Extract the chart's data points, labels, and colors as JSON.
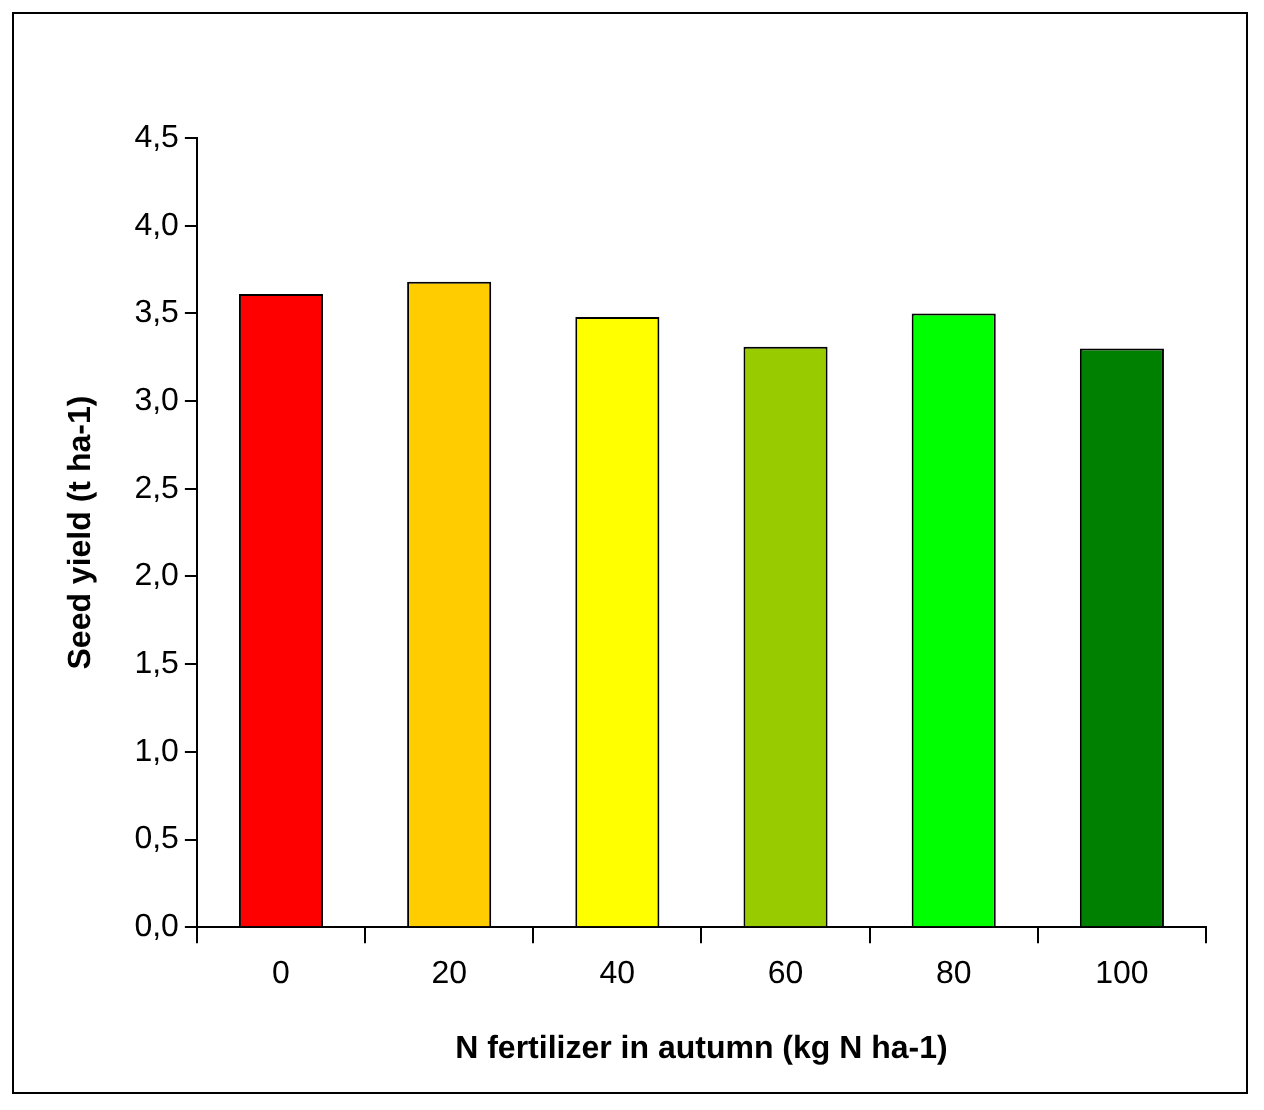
{
  "chart_data": {
    "type": "bar",
    "xlabel": "N fertilizer in autumn (kg N ha-1)",
    "ylabel": "Seed yield (t ha-1)",
    "categories": [
      "0",
      "20",
      "40",
      "60",
      "80",
      "100"
    ],
    "values": [
      3.61,
      3.68,
      3.48,
      3.31,
      3.5,
      3.3
    ],
    "colors": [
      "#ff0000",
      "#ffcc00",
      "#ffff00",
      "#99cc00",
      "#00ff00",
      "#008000"
    ],
    "ylim": [
      0,
      4.5
    ],
    "yticks": [
      {
        "value": 0,
        "label": "0,0"
      },
      {
        "value": 0.5,
        "label": "0,5"
      },
      {
        "value": 1,
        "label": "1,0"
      },
      {
        "value": 1.5,
        "label": "1,5"
      },
      {
        "value": 2,
        "label": "2,0"
      },
      {
        "value": 2.5,
        "label": "2,5"
      },
      {
        "value": 3,
        "label": "3,0"
      },
      {
        "value": 3.5,
        "label": "3,5"
      },
      {
        "value": 4,
        "label": "4,0"
      },
      {
        "value": 4.5,
        "label": "4,5"
      }
    ],
    "grid": false,
    "legend": false
  }
}
